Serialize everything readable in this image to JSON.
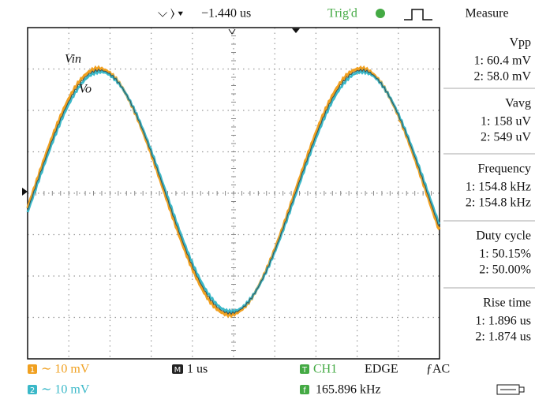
{
  "top_bar": {
    "trigger_position": "−1.440 us",
    "status": "Trig'd"
  },
  "labels": {
    "input": "Vin",
    "output": "Vo"
  },
  "measure": {
    "title": "Measure",
    "items": [
      {
        "name": "Vpp",
        "ch1": "1: 60.4 mV",
        "ch2": "2: 58.0 mV"
      },
      {
        "name": "Vavg",
        "ch1": "1: 158 uV",
        "ch2": "2: 549 uV"
      },
      {
        "name": "Frequency",
        "ch1": "1: 154.8 kHz",
        "ch2": "2: 154.8 kHz"
      },
      {
        "name": "Duty cycle",
        "ch1": "1: 50.15%",
        "ch2": "2: 50.00%"
      },
      {
        "name": "Rise time",
        "ch1": "1: 1.896 us",
        "ch2": "2: 1.874 us"
      }
    ]
  },
  "status_bar": {
    "ch1_badge": "1",
    "ch1_scale": "∼ 10 mV",
    "ch2_badge": "2",
    "ch2_scale": "∼ 10 mV",
    "time_badge": "M",
    "time_scale": "1 us",
    "trigger_badge": "T",
    "trigger_source": "CH1",
    "trigger_type": "EDGE",
    "trigger_coupling": "ƒAC",
    "freq_badge": "f",
    "frequency": "165.896 kHz"
  }
}
